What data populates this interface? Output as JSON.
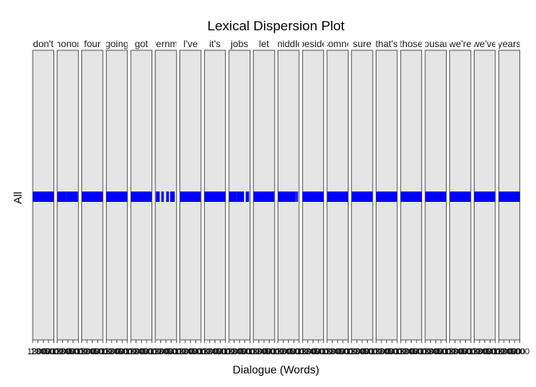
{
  "chart_data": {
    "type": "dispersion",
    "title": "Lexical Dispersion Plot",
    "xlabel": "Dialogue (Words)",
    "ylabel": "All",
    "panel_fill": "#e5e5e5",
    "mark_color": "#0000ff",
    "panels": [
      {
        "label": "don't",
        "hits": [
          0.0,
          0.02,
          0.04,
          0.06,
          0.08,
          0.1,
          0.12,
          0.14,
          0.16,
          0.18,
          0.2,
          0.22,
          0.24,
          0.26,
          0.28,
          0.3,
          0.32,
          0.34,
          0.36,
          0.38,
          0.4,
          0.42,
          0.44,
          0.46,
          0.48,
          0.5,
          0.52,
          0.54,
          0.56,
          0.58,
          0.6,
          0.62,
          0.64,
          0.66,
          0.68,
          0.7,
          0.72,
          0.74,
          0.76,
          0.78,
          0.8,
          0.82,
          0.84,
          0.86,
          0.88,
          0.9,
          0.92,
          0.94,
          0.96,
          0.98,
          1.0
        ]
      },
      {
        "label": "honor",
        "hits": [
          0.0,
          0.04,
          0.08,
          0.12,
          0.16,
          0.22,
          0.26,
          0.3,
          0.35,
          0.4,
          0.46,
          0.5,
          0.52,
          0.55,
          0.6,
          0.65,
          0.7,
          0.74,
          0.8,
          0.85,
          0.9,
          0.94,
          0.99
        ]
      },
      {
        "label": "four",
        "hits": [
          0.0,
          0.02,
          0.04,
          0.06,
          0.08,
          0.1,
          0.12,
          0.14,
          0.16,
          0.18,
          0.2,
          0.22,
          0.24,
          0.26,
          0.28,
          0.3,
          0.32,
          0.34,
          0.36,
          0.38,
          0.4,
          0.42,
          0.44,
          0.46,
          0.48,
          0.5,
          0.52,
          0.54,
          0.56,
          0.58,
          0.6,
          0.62,
          0.64,
          0.66,
          0.68,
          0.7,
          0.72,
          0.74,
          0.76,
          0.78,
          0.8,
          0.82,
          0.84,
          0.86,
          0.88,
          0.9,
          0.92,
          0.94,
          0.96,
          0.98,
          1.0
        ]
      },
      {
        "label": "going",
        "hits": [
          0.0,
          0.02,
          0.04,
          0.06,
          0.08,
          0.1,
          0.12,
          0.14,
          0.16,
          0.18,
          0.2,
          0.22,
          0.24,
          0.26,
          0.28,
          0.3,
          0.32,
          0.34,
          0.36,
          0.38,
          0.4,
          0.42,
          0.44,
          0.46,
          0.48,
          0.5,
          0.52,
          0.54,
          0.56,
          0.58,
          0.6,
          0.62,
          0.64,
          0.66,
          0.68,
          0.7,
          0.72,
          0.74,
          0.76,
          0.78,
          0.8,
          0.82,
          0.84,
          0.86,
          0.88,
          0.9,
          0.92,
          0.94,
          0.96,
          0.98,
          1.0
        ]
      },
      {
        "label": "got",
        "hits": [
          0.0,
          0.03,
          0.06,
          0.09,
          0.12,
          0.15,
          0.18,
          0.21,
          0.24,
          0.27,
          0.3,
          0.33,
          0.36,
          0.39,
          0.42,
          0.45,
          0.48,
          0.51,
          0.54,
          0.57,
          0.6,
          0.63,
          0.66,
          0.69,
          0.72,
          0.75,
          0.78,
          0.81,
          0.84,
          0.87,
          0.9,
          0.93,
          0.96,
          0.99
        ]
      },
      {
        "label": "government",
        "hits": [
          0.02,
          0.05,
          0.08,
          0.1,
          0.12,
          0.15,
          0.3,
          0.33,
          0.36,
          0.55,
          0.6,
          0.62,
          0.75,
          0.8,
          0.84,
          0.86,
          0.92
        ]
      },
      {
        "label": "I've",
        "hits": [
          0.0,
          0.03,
          0.06,
          0.09,
          0.12,
          0.15,
          0.18,
          0.21,
          0.24,
          0.27,
          0.3,
          0.33,
          0.36,
          0.39,
          0.42,
          0.45,
          0.48,
          0.51,
          0.54,
          0.57,
          0.6,
          0.63,
          0.66,
          0.69,
          0.72,
          0.75,
          0.78,
          0.81,
          0.84,
          0.87,
          0.9,
          0.93,
          0.96,
          0.99
        ]
      },
      {
        "label": "it's",
        "hits": [
          0.0,
          0.02,
          0.04,
          0.06,
          0.08,
          0.1,
          0.12,
          0.14,
          0.16,
          0.18,
          0.2,
          0.22,
          0.24,
          0.26,
          0.28,
          0.3,
          0.32,
          0.34,
          0.36,
          0.38,
          0.4,
          0.42,
          0.44,
          0.46,
          0.48,
          0.5,
          0.52,
          0.54,
          0.56,
          0.58,
          0.6,
          0.62,
          0.64,
          0.66,
          0.68,
          0.7,
          0.72,
          0.74,
          0.76,
          0.78,
          0.8,
          0.82,
          0.84,
          0.86,
          0.88,
          0.9,
          0.92,
          0.94,
          0.96,
          0.98,
          1.0
        ]
      },
      {
        "label": "jobs",
        "hits": [
          0.0,
          0.03,
          0.06,
          0.09,
          0.12,
          0.15,
          0.18,
          0.21,
          0.24,
          0.27,
          0.3,
          0.33,
          0.4,
          0.44,
          0.48,
          0.52,
          0.56,
          0.6,
          0.66,
          0.7,
          0.85,
          0.88,
          0.92,
          0.96
        ]
      },
      {
        "label": "let",
        "hits": [
          0.0,
          0.03,
          0.06,
          0.09,
          0.12,
          0.15,
          0.18,
          0.21,
          0.24,
          0.27,
          0.3,
          0.33,
          0.36,
          0.39,
          0.42,
          0.45,
          0.48,
          0.51,
          0.54,
          0.57,
          0.6,
          0.63,
          0.66,
          0.69,
          0.72,
          0.75,
          0.78,
          0.81,
          0.84,
          0.87,
          0.9,
          0.93,
          0.96,
          0.99
        ]
      },
      {
        "label": "middle",
        "hits": [
          0.0,
          0.03,
          0.06,
          0.09,
          0.12,
          0.15,
          0.18,
          0.21,
          0.24,
          0.27,
          0.3,
          0.33,
          0.36,
          0.39,
          0.42,
          0.45,
          0.48,
          0.51,
          0.54,
          0.57,
          0.6,
          0.63,
          0.66,
          0.69,
          0.72,
          0.75,
          0.8,
          0.84,
          0.92,
          0.95
        ]
      },
      {
        "label": "beside",
        "hits": [
          0.0,
          0.02,
          0.04,
          0.06,
          0.08,
          0.1,
          0.12,
          0.14,
          0.16,
          0.18,
          0.2,
          0.22,
          0.24,
          0.26,
          0.28,
          0.3,
          0.32,
          0.34,
          0.36,
          0.38,
          0.4,
          0.42,
          0.44,
          0.46,
          0.48,
          0.5,
          0.52,
          0.54,
          0.56,
          0.58,
          0.6,
          0.62,
          0.64,
          0.66,
          0.68,
          0.7,
          0.72,
          0.74,
          0.76,
          0.78,
          0.8,
          0.82,
          0.84,
          0.86,
          0.88,
          0.9,
          0.92,
          0.94,
          0.96,
          0.98,
          1.0
        ]
      },
      {
        "label": "somne",
        "hits": [
          0.0,
          0.02,
          0.04,
          0.06,
          0.08,
          0.1,
          0.12,
          0.14,
          0.16,
          0.18,
          0.2,
          0.22,
          0.24,
          0.26,
          0.28,
          0.3,
          0.32,
          0.34,
          0.36,
          0.38,
          0.4,
          0.42,
          0.44,
          0.46,
          0.48,
          0.5,
          0.52,
          0.54,
          0.56,
          0.58,
          0.6,
          0.62,
          0.64,
          0.66,
          0.68,
          0.7,
          0.72,
          0.74,
          0.76,
          0.78,
          0.8,
          0.82,
          0.84,
          0.86,
          0.88,
          0.9,
          0.92,
          0.94,
          0.96,
          0.98,
          1.0
        ]
      },
      {
        "label": "sure",
        "hits": [
          0.0,
          0.02,
          0.04,
          0.06,
          0.08,
          0.1,
          0.12,
          0.14,
          0.16,
          0.18,
          0.2,
          0.22,
          0.24,
          0.26,
          0.28,
          0.3,
          0.32,
          0.34,
          0.36,
          0.38,
          0.4,
          0.42,
          0.44,
          0.46,
          0.48,
          0.5,
          0.52,
          0.54,
          0.56,
          0.58,
          0.6,
          0.62,
          0.64,
          0.66,
          0.68,
          0.7,
          0.72,
          0.74,
          0.76,
          0.78,
          0.8,
          0.82,
          0.84,
          0.86,
          0.88,
          0.9,
          0.92,
          0.94,
          0.96,
          0.98,
          1.0
        ]
      },
      {
        "label": "that's",
        "hits": [
          0.0,
          0.02,
          0.04,
          0.06,
          0.08,
          0.1,
          0.12,
          0.14,
          0.16,
          0.18,
          0.2,
          0.22,
          0.24,
          0.26,
          0.28,
          0.3,
          0.32,
          0.34,
          0.36,
          0.38,
          0.4,
          0.42,
          0.44,
          0.46,
          0.48,
          0.5,
          0.52,
          0.54,
          0.56,
          0.58,
          0.6,
          0.62,
          0.64,
          0.66,
          0.68,
          0.7,
          0.72,
          0.74,
          0.76,
          0.78,
          0.8,
          0.82,
          0.84,
          0.86,
          0.88,
          0.9,
          0.92,
          0.94,
          0.96,
          0.98,
          1.0
        ]
      },
      {
        "label": "those",
        "hits": [
          0.0,
          0.02,
          0.04,
          0.06,
          0.08,
          0.1,
          0.12,
          0.14,
          0.16,
          0.18,
          0.2,
          0.22,
          0.24,
          0.26,
          0.28,
          0.3,
          0.32,
          0.34,
          0.36,
          0.38,
          0.4,
          0.42,
          0.44,
          0.46,
          0.48,
          0.5,
          0.52,
          0.54,
          0.56,
          0.58,
          0.6,
          0.62,
          0.64,
          0.66,
          0.68,
          0.7,
          0.72,
          0.74,
          0.76,
          0.78,
          0.8,
          0.82,
          0.84,
          0.86,
          0.88,
          0.9,
          0.92,
          0.94,
          0.96,
          0.98,
          1.0
        ]
      },
      {
        "label": "thousand",
        "hits": [
          0.0,
          0.02,
          0.04,
          0.06,
          0.08,
          0.1,
          0.12,
          0.14,
          0.16,
          0.18,
          0.2,
          0.22,
          0.24,
          0.26,
          0.28,
          0.3,
          0.32,
          0.34,
          0.36,
          0.38,
          0.4,
          0.42,
          0.44,
          0.46,
          0.48,
          0.5,
          0.52,
          0.54,
          0.56,
          0.58,
          0.6,
          0.62,
          0.64,
          0.66,
          0.68,
          0.7,
          0.72,
          0.74,
          0.76,
          0.78,
          0.8,
          0.82,
          0.84,
          0.86,
          0.88,
          0.9,
          0.92,
          0.94,
          0.96,
          0.98,
          1.0
        ]
      },
      {
        "label": "we're",
        "hits": [
          0.0,
          0.02,
          0.04,
          0.06,
          0.08,
          0.1,
          0.12,
          0.14,
          0.16,
          0.18,
          0.2,
          0.22,
          0.24,
          0.26,
          0.28,
          0.3,
          0.32,
          0.34,
          0.36,
          0.38,
          0.4,
          0.42,
          0.44,
          0.46,
          0.48,
          0.5,
          0.52,
          0.54,
          0.56,
          0.58,
          0.6,
          0.62,
          0.64,
          0.66,
          0.68,
          0.7,
          0.72,
          0.74,
          0.76,
          0.78,
          0.8,
          0.82,
          0.84,
          0.86,
          0.88,
          0.9,
          0.92,
          0.94,
          0.96,
          0.98,
          1.0
        ]
      },
      {
        "label": "we've",
        "hits": [
          0.0,
          0.02,
          0.04,
          0.06,
          0.08,
          0.1,
          0.12,
          0.14,
          0.16,
          0.18,
          0.2,
          0.22,
          0.24,
          0.26,
          0.28,
          0.3,
          0.32,
          0.34,
          0.36,
          0.38,
          0.4,
          0.42,
          0.44,
          0.46,
          0.48,
          0.5,
          0.52,
          0.54,
          0.56,
          0.58,
          0.6,
          0.62,
          0.64,
          0.66,
          0.68,
          0.7,
          0.72,
          0.74,
          0.76,
          0.78,
          0.8,
          0.82,
          0.84,
          0.86,
          0.88,
          0.9,
          0.92,
          0.94,
          0.96,
          0.98,
          1.0
        ]
      },
      {
        "label": "years",
        "hits": [
          0.0,
          0.02,
          0.04,
          0.06,
          0.08,
          0.1,
          0.12,
          0.14,
          0.16,
          0.18,
          0.2,
          0.22,
          0.24,
          0.26,
          0.28,
          0.3,
          0.32,
          0.34,
          0.36,
          0.38,
          0.4,
          0.42,
          0.44,
          0.46,
          0.48,
          0.5,
          0.52,
          0.54,
          0.56,
          0.58,
          0.6,
          0.62,
          0.64,
          0.66,
          0.68,
          0.7,
          0.72,
          0.74,
          0.76,
          0.78,
          0.8,
          0.82,
          0.84,
          0.86,
          0.88,
          0.9,
          0.92,
          0.94,
          0.96,
          0.98,
          1.0
        ]
      }
    ],
    "tick_labels": [
      "1",
      "1300",
      "2000",
      "3000",
      "4000",
      "5000"
    ],
    "tick_label_rendering": "overlapping"
  }
}
